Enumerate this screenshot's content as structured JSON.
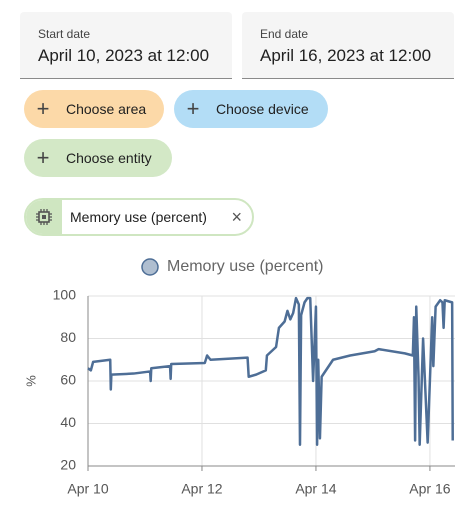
{
  "date_range": {
    "start_label": "Start date",
    "start_value": "April 10, 2023 at 12:00",
    "end_label": "End date",
    "end_value": "April 16, 2023 at 12:00"
  },
  "target_chips": [
    "Choose area",
    "Choose device",
    "Choose entity"
  ],
  "selected_entity": "Memory use (percent)",
  "chart_data": {
    "type": "line",
    "ylabel": "%",
    "x": [
      10.0,
      10.05,
      10.09,
      10.39,
      10.4,
      10.41,
      10.8,
      11.09,
      11.1,
      11.11,
      11.44,
      11.45,
      11.46,
      12.05,
      12.09,
      12.15,
      12.8,
      12.82,
      12.95,
      13.12,
      13.14,
      13.3,
      13.35,
      13.45,
      13.5,
      13.55,
      13.6,
      13.65,
      13.7,
      13.72,
      13.74,
      13.8,
      13.85,
      13.9,
      13.95,
      14.0,
      14.02,
      14.04,
      14.07,
      14.1,
      14.3,
      14.6,
      15.03,
      15.1,
      15.56,
      15.7,
      15.72,
      15.74,
      15.76,
      15.8,
      15.82,
      15.88,
      15.96,
      16.04,
      16.06,
      16.1,
      16.18,
      16.22,
      16.24,
      16.26,
      16.39,
      16.4
    ],
    "series": [
      {
        "name": "Memory use (percent)",
        "color": "#4e6e96",
        "values": [
          66,
          65,
          69,
          70,
          56,
          63,
          63.5,
          64.5,
          60,
          66,
          67,
          61,
          68,
          68.5,
          72,
          70,
          71,
          62,
          63,
          65,
          72,
          76,
          85,
          88,
          93,
          89,
          92,
          99,
          96,
          30,
          91,
          97,
          99,
          99,
          60,
          95,
          30,
          70,
          33,
          62,
          70,
          72,
          74,
          75,
          73,
          72,
          90,
          32,
          95,
          62,
          30,
          80,
          31,
          90,
          67,
          95,
          98,
          97,
          85,
          98,
          97,
          32
        ]
      }
    ],
    "xlim": [
      10,
      16.44
    ],
    "ylim": [
      20,
      100
    ],
    "xticks": [
      {
        "value": 10,
        "label": "Apr 10"
      },
      {
        "value": 12,
        "label": "Apr 12"
      },
      {
        "value": 14,
        "label": "Apr 14"
      },
      {
        "value": 16,
        "label": "Apr 16"
      }
    ],
    "yticks": [
      20,
      40,
      60,
      80,
      100
    ],
    "grid": true
  }
}
